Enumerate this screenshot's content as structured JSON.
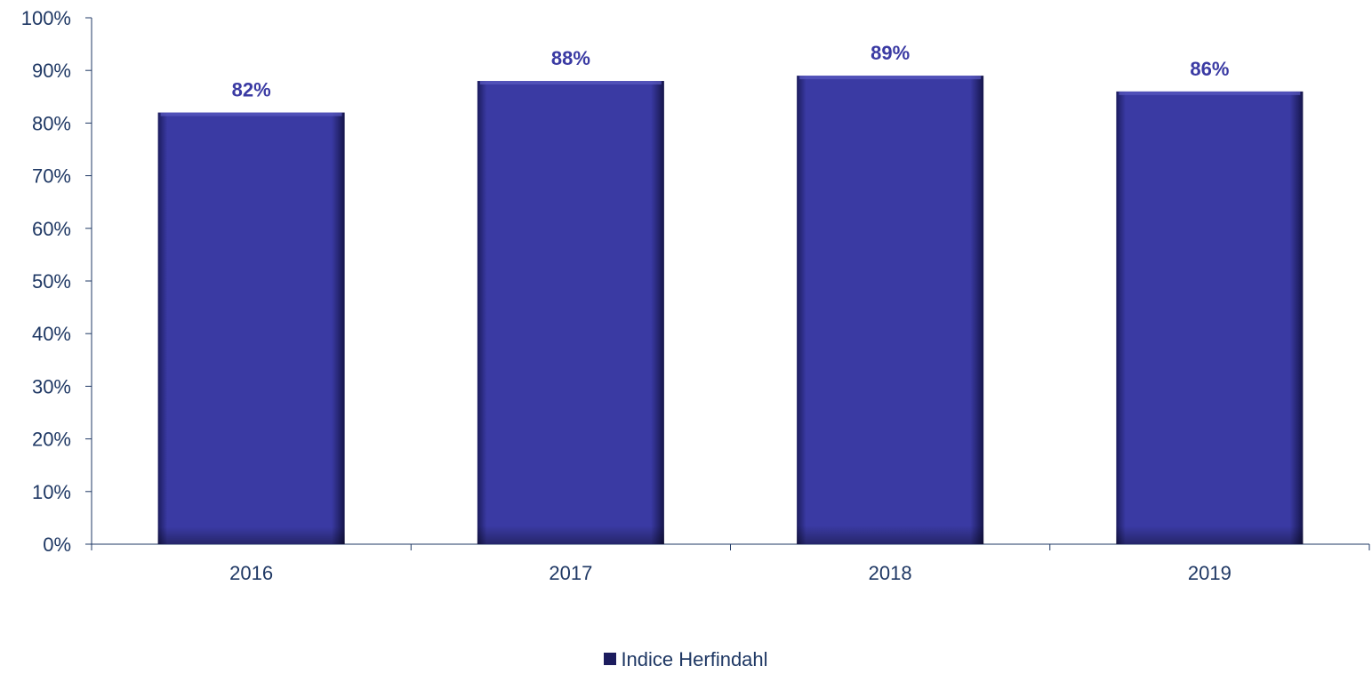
{
  "chart_data": {
    "type": "bar",
    "categories": [
      "2016",
      "2017",
      "2018",
      "2019"
    ],
    "series": [
      {
        "name": "Indice Herfindahl",
        "values": [
          82,
          88,
          89,
          86
        ]
      }
    ],
    "data_labels": [
      "82%",
      "88%",
      "89%",
      "86%"
    ],
    "y_ticks": [
      "0%",
      "10%",
      "20%",
      "30%",
      "40%",
      "50%",
      "60%",
      "70%",
      "80%",
      "90%",
      "100%"
    ],
    "ylim": [
      0,
      100
    ],
    "grid": false,
    "legend_position": "bottom",
    "title": "",
    "xlabel": "",
    "ylabel": ""
  },
  "colors": {
    "bar": "#3a3aa3",
    "bar_dark": "#1c1c5e",
    "label": "#3a3aa3",
    "axis": "#1f3864"
  }
}
